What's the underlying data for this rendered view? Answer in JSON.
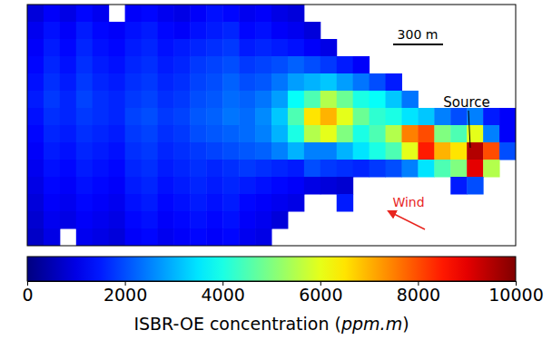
{
  "chart_data": {
    "type": "heatmap",
    "tick_labels": false,
    "cells": [
      [
        900,
        1200,
        1000,
        1300,
        1100,
        null,
        1200,
        1300,
        1100,
        1000,
        1200,
        1400,
        1300,
        1100,
        1200,
        1000,
        900,
        null,
        null,
        null,
        null,
        null,
        null,
        null,
        null,
        null,
        null,
        null,
        null,
        null
      ],
      [
        1100,
        1400,
        1200,
        1500,
        1300,
        1200,
        1400,
        1500,
        1300,
        1200,
        1400,
        1500,
        1600,
        1300,
        1400,
        1200,
        1100,
        900,
        null,
        null,
        null,
        null,
        null,
        null,
        null,
        null,
        null,
        null,
        null,
        null
      ],
      [
        1200,
        1500,
        1300,
        1600,
        1400,
        1300,
        1500,
        1600,
        1400,
        1500,
        1600,
        1700,
        1800,
        1500,
        1600,
        1500,
        1400,
        1200,
        1000,
        null,
        null,
        null,
        null,
        null,
        null,
        null,
        null,
        null,
        null,
        null
      ],
      [
        1300,
        1600,
        1400,
        1700,
        1500,
        1400,
        1600,
        1700,
        1500,
        1600,
        1800,
        1900,
        2000,
        1800,
        1900,
        2000,
        2200,
        2000,
        1800,
        1500,
        1200,
        null,
        null,
        null,
        null,
        null,
        null,
        null,
        null,
        null
      ],
      [
        1400,
        1700,
        1500,
        1800,
        1600,
        1500,
        1700,
        1800,
        1600,
        1700,
        1900,
        2000,
        2200,
        2000,
        2100,
        2400,
        2800,
        3000,
        3200,
        2800,
        2400,
        2000,
        1500,
        null,
        null,
        null,
        null,
        null,
        null,
        null
      ],
      [
        1500,
        1800,
        1600,
        1900,
        1700,
        1600,
        1800,
        1900,
        1700,
        1800,
        2000,
        2100,
        2300,
        2200,
        2400,
        2800,
        3800,
        4500,
        5500,
        4800,
        4000,
        3800,
        3200,
        2400,
        null,
        null,
        null,
        null,
        null,
        null
      ],
      [
        1400,
        1700,
        1600,
        1800,
        1700,
        1600,
        1900,
        2000,
        1800,
        1900,
        2100,
        2200,
        2400,
        2300,
        2600,
        3200,
        4500,
        6500,
        7000,
        6000,
        4800,
        4200,
        4000,
        3500,
        3200,
        2500,
        2000,
        2500,
        1500,
        1200
      ],
      [
        1300,
        1600,
        1500,
        1700,
        1600,
        1500,
        1800,
        1900,
        1700,
        1800,
        2000,
        2100,
        2200,
        2300,
        2500,
        3000,
        4000,
        5500,
        6000,
        5000,
        4000,
        4500,
        5500,
        7500,
        8000,
        5000,
        4500,
        6000,
        2500,
        1200
      ],
      [
        1200,
        1500,
        1400,
        1600,
        1500,
        1400,
        1700,
        1800,
        1600,
        1700,
        1800,
        1900,
        2000,
        2100,
        2200,
        2500,
        3000,
        2500,
        2500,
        3000,
        3500,
        4000,
        4500,
        6000,
        8500,
        7000,
        6500,
        9500,
        8000,
        2000
      ],
      [
        1100,
        1400,
        1300,
        1500,
        1400,
        1300,
        1600,
        1700,
        1500,
        1600,
        1700,
        1600,
        1700,
        1800,
        1700,
        1600,
        1500,
        2000,
        1800,
        1700,
        1600,
        1800,
        2000,
        2500,
        3500,
        4500,
        5000,
        9000,
        5500,
        null
      ],
      [
        1000,
        1300,
        1200,
        1400,
        1300,
        1200,
        1500,
        1600,
        1400,
        1500,
        1600,
        1500,
        1600,
        1500,
        1400,
        1300,
        1200,
        1000,
        900,
        800,
        null,
        null,
        null,
        null,
        null,
        null,
        1500,
        2000,
        null,
        null
      ],
      [
        900,
        1200,
        1100,
        1300,
        1200,
        1100,
        1400,
        1500,
        1300,
        1400,
        1500,
        1400,
        1500,
        1300,
        1200,
        1100,
        1000,
        null,
        null,
        1500,
        null,
        null,
        null,
        null,
        null,
        null,
        null,
        null,
        null,
        null
      ],
      [
        800,
        1100,
        1000,
        1200,
        1100,
        1000,
        1300,
        1400,
        1200,
        1300,
        1400,
        1300,
        1400,
        1200,
        1100,
        900,
        null,
        null,
        null,
        null,
        null,
        null,
        null,
        null,
        null,
        null,
        null,
        null,
        null,
        null
      ],
      [
        700,
        1000,
        null,
        1100,
        1000,
        900,
        1200,
        1300,
        1100,
        1200,
        1300,
        1200,
        1300,
        1100,
        1000,
        null,
        null,
        null,
        null,
        null,
        null,
        null,
        null,
        null,
        null,
        null,
        null,
        null,
        null,
        null
      ]
    ],
    "colorbar": {
      "range": [
        0,
        10000
      ],
      "ticks": [
        0,
        2000,
        4000,
        6000,
        8000,
        10000
      ],
      "label": "ISBR-OE concentration (ppm.m)"
    },
    "annotations": [
      {
        "text": "Source"
      },
      {
        "text": "Wind",
        "color": "#e8251f"
      },
      {
        "text": "300 m"
      }
    ]
  }
}
